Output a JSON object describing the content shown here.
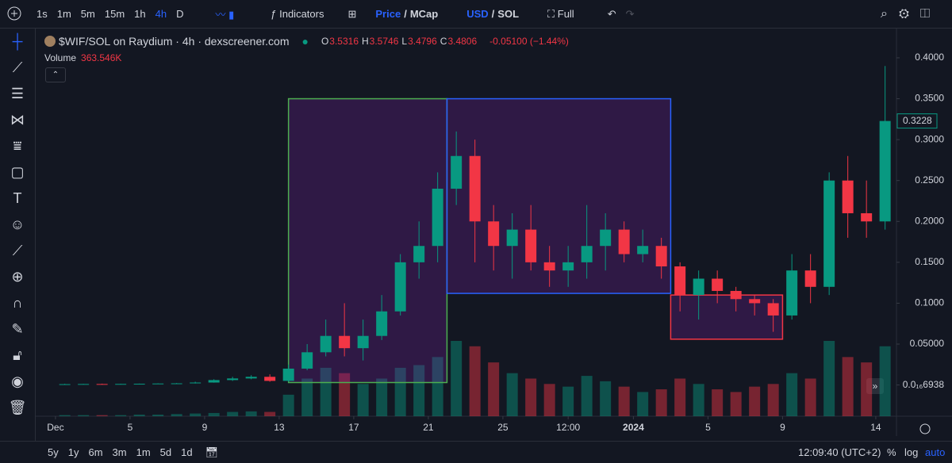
{
  "toolbar": {
    "intervals": [
      "1s",
      "1m",
      "5m",
      "15m",
      "1h",
      "4h",
      "D"
    ],
    "indicators": "Indicators",
    "price_toggle": [
      "Price",
      "/",
      "MCap"
    ],
    "currency_toggle": [
      "USD",
      "/",
      "SOL"
    ],
    "full": "Full"
  },
  "legend": {
    "symbol": "$WIF/SOL on Raydium · 4h · dexscreener.com",
    "ohlc": [
      {
        "label": "O",
        "value": "3.5316"
      },
      {
        "label": "H",
        "value": "3.5746"
      },
      {
        "label": "L",
        "value": "3.4796"
      },
      {
        "label": "C",
        "value": "3.4806"
      }
    ],
    "change": "-0.05100 (−1.44%)",
    "volume_label": "Volume",
    "volume_value": "363.546K"
  },
  "bottom": {
    "ranges": [
      "5y",
      "1y",
      "6m",
      "3m",
      "1m",
      "5d",
      "1d"
    ],
    "clock": "12:09:40 (UTC+2)",
    "percent": "%",
    "log": "log",
    "auto": "auto"
  },
  "chart_data": {
    "type": "candlestick",
    "up_color": "#089981",
    "down_color": "#f23645",
    "x": [
      0.5,
      1.5,
      2.5,
      3.5,
      4.5,
      5.5,
      6.5,
      7.5,
      8.5,
      9.5,
      10.5,
      11.5,
      12.5,
      13.5,
      14.5,
      15.5,
      16.5,
      17.5,
      18.5,
      19.5,
      20.5,
      21.5,
      22.5,
      23.5,
      24.5,
      25.5,
      26.5,
      27.5,
      28.5,
      29.5,
      30.5,
      31.5,
      32.5,
      33.5,
      34.5,
      35.5,
      36.5,
      37.5,
      38.5,
      39.5,
      40.5,
      41.5,
      42.5,
      43.5,
      44.5
    ],
    "open": [
      0.001,
      0.001,
      0.0012,
      0.0011,
      0.0013,
      0.0015,
      0.0018,
      0.002,
      0.003,
      0.006,
      0.008,
      0.01,
      0.005,
      0.02,
      0.04,
      0.06,
      0.045,
      0.06,
      0.09,
      0.15,
      0.17,
      0.24,
      0.28,
      0.2,
      0.17,
      0.19,
      0.15,
      0.14,
      0.15,
      0.17,
      0.19,
      0.16,
      0.17,
      0.145,
      0.11,
      0.13,
      0.115,
      0.105,
      0.1,
      0.085,
      0.14,
      0.12,
      0.25,
      0.21,
      0.2
    ],
    "high": [
      0.0015,
      0.0014,
      0.0016,
      0.0015,
      0.0017,
      0.002,
      0.0024,
      0.004,
      0.007,
      0.01,
      0.012,
      0.013,
      0.025,
      0.05,
      0.08,
      0.1,
      0.08,
      0.11,
      0.16,
      0.2,
      0.26,
      0.31,
      0.3,
      0.22,
      0.21,
      0.22,
      0.17,
      0.17,
      0.22,
      0.21,
      0.2,
      0.19,
      0.18,
      0.15,
      0.14,
      0.14,
      0.12,
      0.11,
      0.105,
      0.16,
      0.16,
      0.26,
      0.28,
      0.25,
      0.39
    ],
    "low": [
      0.0008,
      0.0009,
      0.001,
      0.0009,
      0.0011,
      0.0013,
      0.0016,
      0.0018,
      0.0028,
      0.005,
      0.007,
      0.004,
      0.004,
      0.018,
      0.035,
      0.035,
      0.03,
      0.055,
      0.085,
      0.13,
      0.15,
      0.22,
      0.15,
      0.14,
      0.13,
      0.14,
      0.12,
      0.12,
      0.13,
      0.14,
      0.15,
      0.15,
      0.13,
      0.09,
      0.08,
      0.1,
      0.09,
      0.085,
      0.065,
      0.08,
      0.1,
      0.11,
      0.18,
      0.18,
      0.19
    ],
    "close": [
      0.001,
      0.0012,
      0.0011,
      0.0013,
      0.0015,
      0.0018,
      0.002,
      0.003,
      0.006,
      0.008,
      0.01,
      0.005,
      0.02,
      0.04,
      0.06,
      0.045,
      0.06,
      0.09,
      0.15,
      0.17,
      0.24,
      0.28,
      0.2,
      0.17,
      0.19,
      0.15,
      0.14,
      0.15,
      0.17,
      0.19,
      0.16,
      0.17,
      0.145,
      0.11,
      0.13,
      0.115,
      0.105,
      0.1,
      0.085,
      0.14,
      0.12,
      0.25,
      0.21,
      0.2,
      0.3228
    ],
    "volume": [
      2,
      2,
      2,
      2,
      3,
      3,
      4,
      5,
      6,
      8,
      9,
      8,
      40,
      70,
      90,
      80,
      60,
      70,
      90,
      95,
      110,
      140,
      130,
      100,
      80,
      70,
      60,
      55,
      75,
      65,
      55,
      45,
      50,
      70,
      60,
      50,
      45,
      55,
      60,
      80,
      70,
      140,
      110,
      100,
      130
    ],
    "xlim": [
      -1.06,
      45.11
    ],
    "ylim": [
      -0.0382,
      0.4368
    ],
    "xticks": [
      {
        "value": 0,
        "label": "Dec"
      },
      {
        "value": 4,
        "label": "5"
      },
      {
        "value": 8,
        "label": "9"
      },
      {
        "value": 12,
        "label": "13"
      },
      {
        "value": 16,
        "label": "17"
      },
      {
        "value": 20,
        "label": "21"
      },
      {
        "value": 24,
        "label": "25"
      },
      {
        "value": 27.5,
        "label": "12:00"
      },
      {
        "value": 31,
        "label": "2024"
      },
      {
        "value": 35,
        "label": "5"
      },
      {
        "value": 39,
        "label": "9"
      },
      {
        "value": 44,
        "label": "14"
      }
    ],
    "yticks": [
      {
        "value": 6.938e-17,
        "label": "0.0₁₆6938"
      },
      {
        "value": 0.05,
        "label": "0.05000"
      },
      {
        "value": 0.1,
        "label": "0.1000"
      },
      {
        "value": 0.15,
        "label": "0.1500"
      },
      {
        "value": 0.2,
        "label": "0.2000"
      },
      {
        "value": 0.25,
        "label": "0.2500"
      },
      {
        "value": 0.3,
        "label": "0.3000"
      },
      {
        "value": 0.35,
        "label": "0.3500"
      },
      {
        "value": 0.4,
        "label": "0.4000"
      }
    ],
    "rectangles": [
      {
        "x": [
          12.5,
          21
        ],
        "y": [
          0.003,
          0.35
        ],
        "color": "#4caf50",
        "fill": "rgba(123,31,162,0.28)"
      },
      {
        "x": [
          21,
          33
        ],
        "y": [
          0.112,
          0.35
        ],
        "color": "#2962ff",
        "fill": "rgba(123,31,162,0.28)"
      },
      {
        "x": [
          33,
          39
        ],
        "y": [
          0.056,
          0.11
        ],
        "color": "#f23645",
        "fill": "rgba(123,31,162,0.28)"
      }
    ]
  }
}
